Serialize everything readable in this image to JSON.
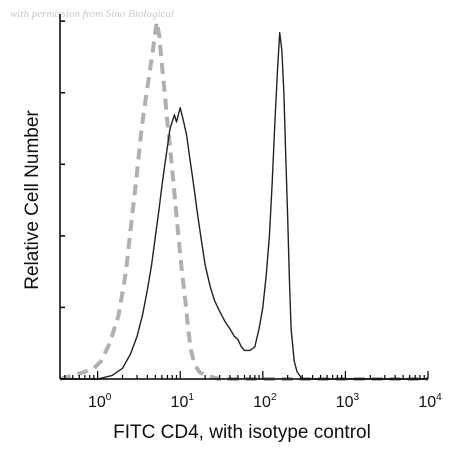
{
  "watermark": "with permission from Sino Biological",
  "chart_data": {
    "type": "line",
    "title": "",
    "xlabel": "FITC CD4, with isotype control",
    "ylabel": "Relative Cell Number",
    "x_scale": "log",
    "xlim": [
      0.35,
      10000
    ],
    "ylim": [
      0,
      100
    ],
    "x_ticks": [
      {
        "value": 1,
        "base": "10",
        "exp": "0"
      },
      {
        "value": 10,
        "base": "10",
        "exp": "1"
      },
      {
        "value": 100,
        "base": "10",
        "exp": "2"
      },
      {
        "value": 1000,
        "base": "10",
        "exp": "3"
      },
      {
        "value": 10000,
        "base": "10",
        "exp": "4"
      }
    ],
    "series": [
      {
        "color": "#b0b0b0",
        "style": "dashed",
        "x": [
          0.35,
          0.5,
          0.7,
          0.9,
          1.1,
          1.4,
          1.8,
          2.2,
          2.6,
          3.0,
          3.4,
          3.8,
          4.2,
          4.6,
          4.9,
          5.2,
          5.6,
          6.0,
          6.5,
          7.0,
          7.6,
          8.2,
          8.9,
          9.6,
          10.5,
          11.5,
          12.5,
          13.5,
          15,
          17,
          20,
          30,
          100,
          1000,
          10000
        ],
        "y": [
          0,
          1,
          2,
          3,
          5,
          10,
          18,
          30,
          45,
          58,
          70,
          78,
          85,
          91,
          96,
          100,
          96,
          88,
          80,
          72,
          64,
          56,
          47,
          39,
          30,
          22,
          14,
          8,
          4,
          2,
          1,
          0,
          0,
          0,
          0
        ]
      },
      {
        "color": "#222222",
        "style": "solid",
        "x": [
          0.35,
          1.0,
          1.5,
          2.0,
          2.5,
          3.0,
          3.5,
          4.0,
          4.5,
          5.0,
          5.5,
          6.0,
          6.5,
          7.0,
          7.5,
          8.0,
          8.5,
          9.0,
          10.0,
          11.0,
          12.0,
          13.0,
          14.0,
          15.0,
          16.0,
          18.0,
          20.0,
          23.0,
          26.0,
          30.0,
          35.0,
          40.0,
          45.0,
          50.0,
          55.0,
          60.0,
          70.0,
          80.0,
          90.0,
          100.0,
          110.0,
          120.0,
          130.0,
          140.0,
          150.0,
          160.0,
          170.0,
          180.0,
          190.0,
          200.0,
          210.0,
          220.0,
          240.0,
          260.0,
          300.0,
          400.0,
          1000.0,
          10000.0
        ],
        "y": [
          0,
          0,
          1,
          3,
          7,
          12,
          18,
          25,
          32,
          40,
          47,
          54,
          60,
          65,
          70,
          72,
          74,
          72,
          76,
          72,
          68,
          62,
          57,
          52,
          47,
          39,
          32,
          26,
          22,
          19,
          16,
          14,
          12,
          11,
          9,
          8,
          8,
          9,
          14,
          20,
          29,
          40,
          55,
          72,
          86,
          97,
          92,
          80,
          62,
          45,
          28,
          14,
          5,
          2,
          0,
          0,
          0,
          0
        ]
      }
    ]
  }
}
